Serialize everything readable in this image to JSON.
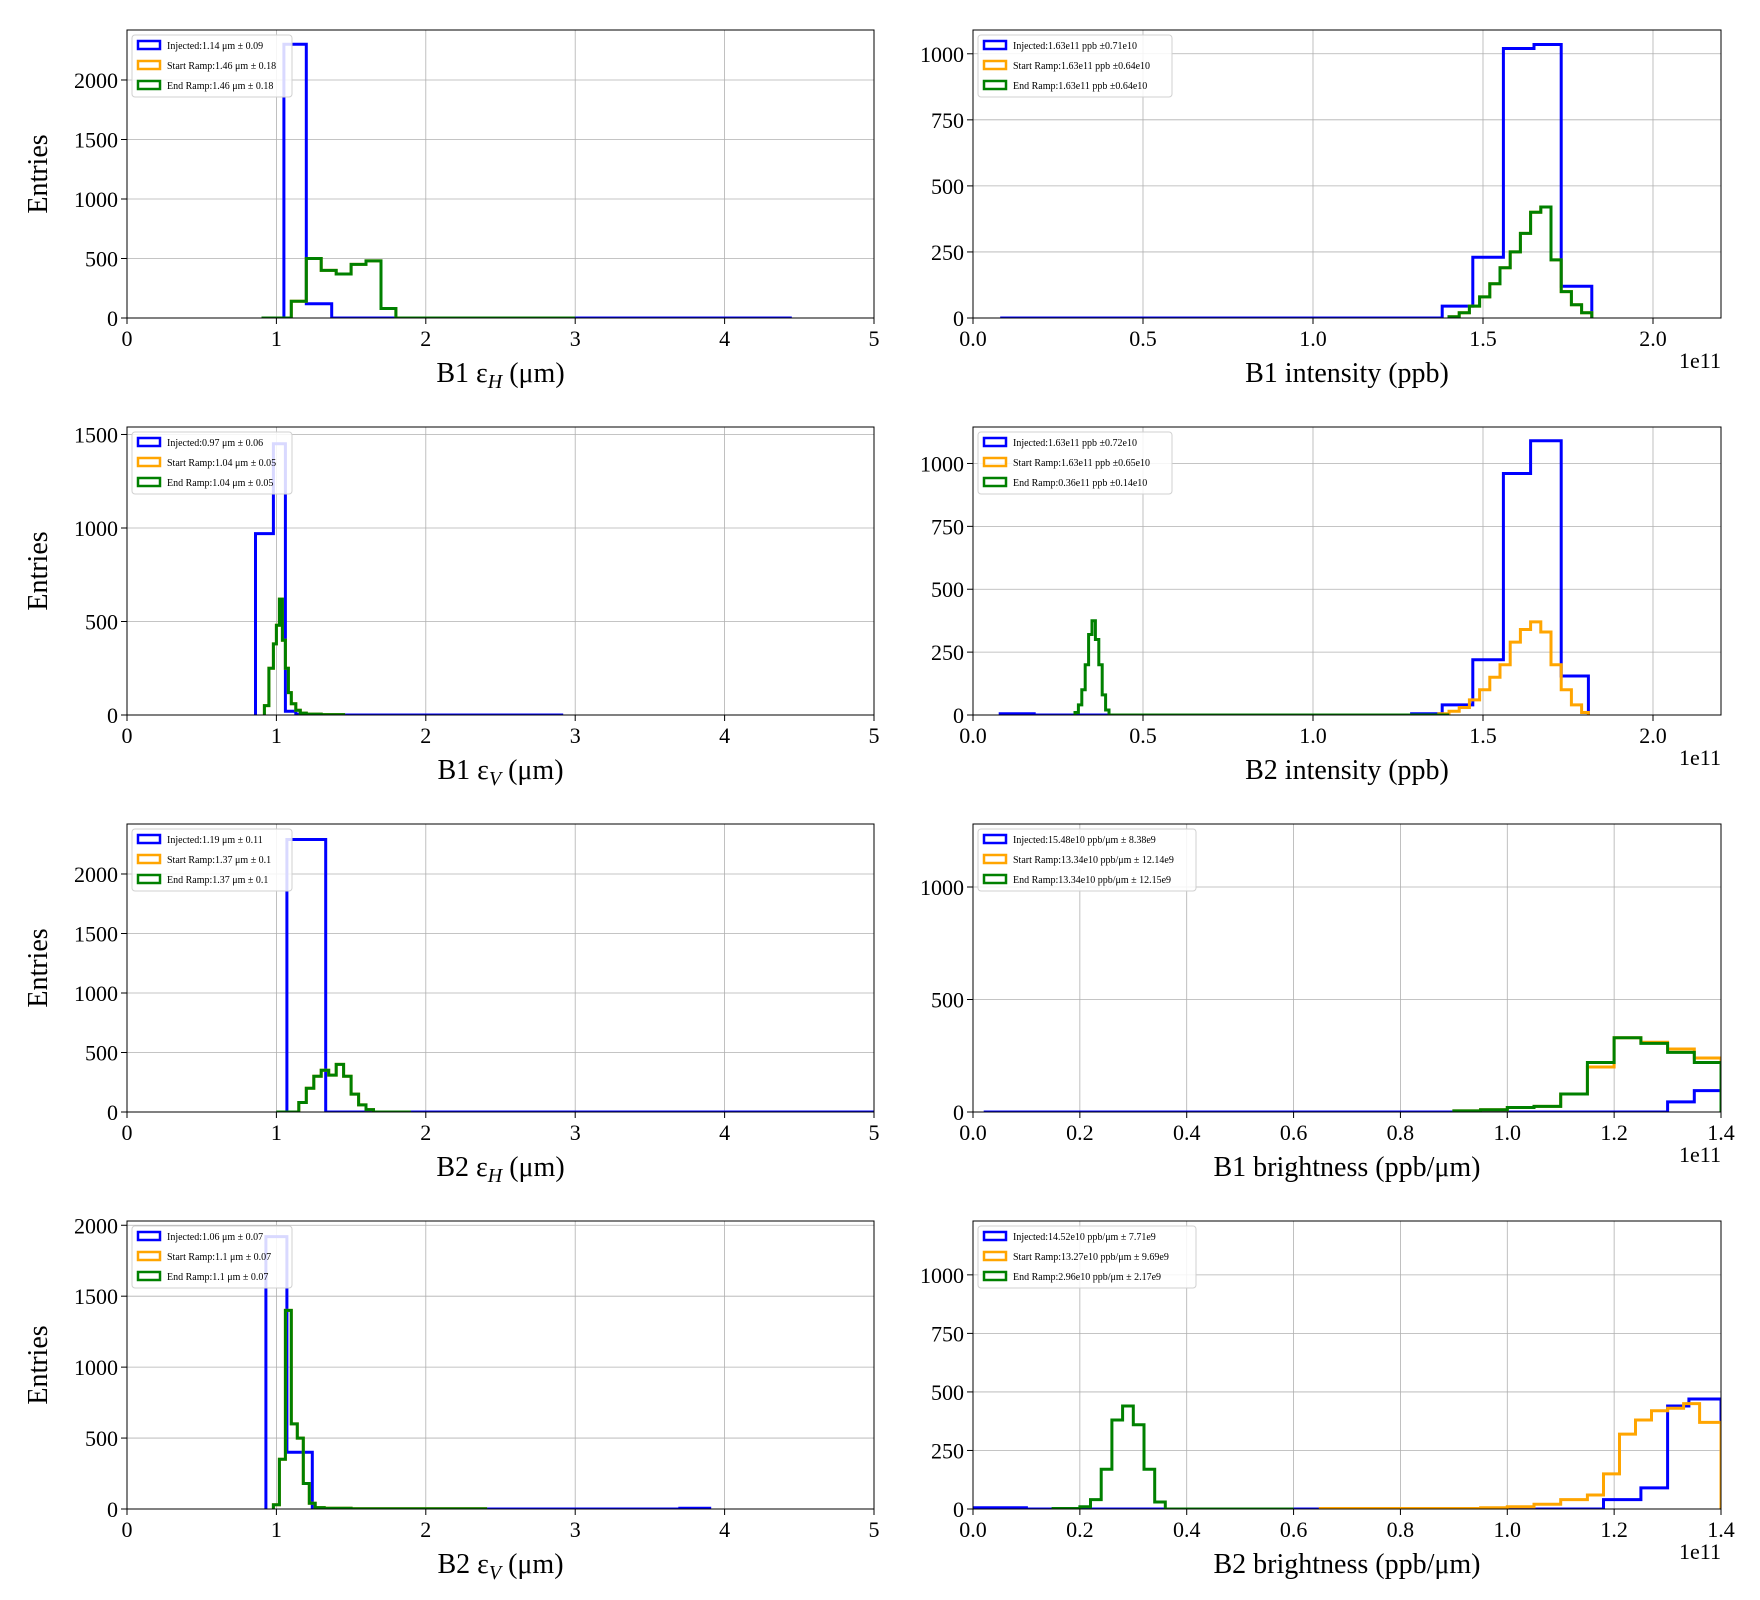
{
  "chart_data": [
    {
      "id": "b1-eh",
      "type": "histogram",
      "xlabel_main": "B1 ε",
      "xlabel_sub": "H",
      "xlabel_unit": " (μm)",
      "ylabel": "Entries",
      "xlim": [
        0,
        5
      ],
      "ylim": [
        0,
        2420
      ],
      "xticks": [
        0,
        1,
        2,
        3,
        4,
        5
      ],
      "xtick_labels": [
        "0",
        "1",
        "2",
        "3",
        "4",
        "5"
      ],
      "yticks": [
        0,
        500,
        1000,
        1500,
        2000
      ],
      "ytick_labels": [
        "0",
        "500",
        "1000",
        "1500",
        "2000"
      ],
      "offset_text": "",
      "legend": [
        "Injected:1.14 μm ± 0.09",
        "Start Ramp:1.46 μm ± 0.18",
        "End Ramp:1.46 μm ± 0.18"
      ],
      "series": [
        {
          "color": "#0000ff",
          "edges": [
            0.9,
            1.05,
            1.2,
            1.37,
            4.45
          ],
          "values": [
            0,
            2300,
            120,
            0
          ]
        },
        {
          "color": "#ffa500",
          "edges": [
            1.1,
            1.2,
            1.3,
            1.4,
            1.5,
            1.6,
            1.7,
            1.8
          ],
          "values": [
            140,
            500,
            400,
            370,
            450,
            480,
            80
          ]
        },
        {
          "color": "#008000",
          "edges": [
            0.9,
            1.1,
            1.2,
            1.3,
            1.4,
            1.5,
            1.6,
            1.7,
            1.8,
            3.0
          ],
          "values": [
            0,
            140,
            500,
            400,
            370,
            450,
            480,
            80,
            0
          ]
        }
      ]
    },
    {
      "id": "b1-intensity",
      "type": "histogram",
      "xlabel_main": "B1 intensity (ppb)",
      "xlabel_sub": "",
      "xlabel_unit": "",
      "ylabel": "",
      "xlim": [
        0,
        2.2
      ],
      "ylim": [
        0,
        1090
      ],
      "xticks": [
        0,
        0.5,
        1.0,
        1.5,
        2.0
      ],
      "xtick_labels": [
        "0.0",
        "0.5",
        "1.0",
        "1.5",
        "2.0"
      ],
      "yticks": [
        0,
        250,
        500,
        750,
        1000
      ],
      "ytick_labels": [
        "0",
        "250",
        "500",
        "750",
        "1000"
      ],
      "offset_text": "1e11",
      "legend": [
        "Injected:1.63e11 ppb ±0.71e10",
        "Start Ramp:1.63e11 ppb ±0.64e10",
        "End Ramp:1.63e11 ppb ±0.64e10"
      ],
      "series": [
        {
          "color": "#0000ff",
          "edges": [
            0.08,
            1.38,
            1.47,
            1.56,
            1.65,
            1.73,
            1.82
          ],
          "values": [
            0,
            45,
            230,
            1020,
            1035,
            120
          ]
        },
        {
          "color": "#ffa500",
          "edges": [
            1.4,
            1.43,
            1.46,
            1.49,
            1.52,
            1.55,
            1.58,
            1.61,
            1.64,
            1.67,
            1.7,
            1.73,
            1.76,
            1.79,
            1.82
          ],
          "values": [
            5,
            20,
            45,
            80,
            130,
            190,
            250,
            320,
            400,
            420,
            220,
            100,
            50,
            20
          ]
        },
        {
          "color": "#008000",
          "edges": [
            1.4,
            1.43,
            1.46,
            1.49,
            1.52,
            1.55,
            1.58,
            1.61,
            1.64,
            1.67,
            1.7,
            1.73,
            1.76,
            1.79,
            1.82
          ],
          "values": [
            5,
            20,
            45,
            80,
            130,
            190,
            250,
            320,
            400,
            420,
            220,
            100,
            50,
            20
          ]
        }
      ]
    },
    {
      "id": "b1-ev",
      "type": "histogram",
      "xlabel_main": "B1 ε",
      "xlabel_sub": "V",
      "xlabel_unit": " (μm)",
      "ylabel": "Entries",
      "xlim": [
        0,
        5
      ],
      "ylim": [
        0,
        1540
      ],
      "xticks": [
        0,
        1,
        2,
        3,
        4,
        5
      ],
      "xtick_labels": [
        "0",
        "1",
        "2",
        "3",
        "4",
        "5"
      ],
      "yticks": [
        0,
        500,
        1000,
        1500
      ],
      "ytick_labels": [
        "0",
        "500",
        "1000",
        "1500"
      ],
      "offset_text": "",
      "legend": [
        "Injected:0.97 μm ± 0.06",
        "Start Ramp:1.04 μm ± 0.05",
        "End Ramp:1.04 μm ± 0.05"
      ],
      "series": [
        {
          "color": "#0000ff",
          "edges": [
            0.86,
            0.98,
            1.06,
            1.13,
            1.2,
            2.92
          ],
          "values": [
            970,
            1450,
            20,
            5,
            0
          ]
        },
        {
          "color": "#ffa500",
          "edges": [
            0.92,
            0.95,
            0.98,
            1.0,
            1.02,
            1.04,
            1.06,
            1.08,
            1.1,
            1.13,
            1.16,
            1.2,
            1.3,
            1.45
          ],
          "values": [
            50,
            250,
            380,
            480,
            620,
            400,
            250,
            120,
            60,
            25,
            10,
            5,
            2
          ]
        },
        {
          "color": "#008000",
          "edges": [
            0.92,
            0.95,
            0.98,
            1.0,
            1.02,
            1.04,
            1.06,
            1.08,
            1.1,
            1.13,
            1.16,
            1.2,
            1.3,
            1.45
          ],
          "values": [
            50,
            250,
            380,
            480,
            620,
            400,
            250,
            120,
            60,
            25,
            10,
            5,
            2
          ]
        }
      ]
    },
    {
      "id": "b2-intensity",
      "type": "histogram",
      "xlabel_main": "B2 intensity (ppb)",
      "xlabel_sub": "",
      "xlabel_unit": "",
      "ylabel": "",
      "xlim": [
        0,
        2.2
      ],
      "ylim": [
        0,
        1145
      ],
      "xticks": [
        0,
        0.5,
        1.0,
        1.5,
        2.0
      ],
      "xtick_labels": [
        "0.0",
        "0.5",
        "1.0",
        "1.5",
        "2.0"
      ],
      "yticks": [
        0,
        250,
        500,
        750,
        1000
      ],
      "ytick_labels": [
        "0",
        "250",
        "500",
        "750",
        "1000"
      ],
      "offset_text": "1e11",
      "legend": [
        "Injected:1.63e11 ppb ±0.72e10",
        "Start Ramp:1.63e11 ppb ±0.65e10",
        "End Ramp:0.36e11 ppb ±0.14e10"
      ],
      "series": [
        {
          "color": "#0000ff",
          "edges": [
            0.08,
            0.18,
            1.29,
            1.38,
            1.47,
            1.56,
            1.64,
            1.73,
            1.81
          ],
          "values": [
            5,
            0,
            5,
            40,
            220,
            960,
            1090,
            155
          ]
        },
        {
          "color": "#ffa500",
          "edges": [
            1.37,
            1.4,
            1.43,
            1.46,
            1.49,
            1.52,
            1.55,
            1.58,
            1.61,
            1.64,
            1.67,
            1.7,
            1.73,
            1.76,
            1.79,
            1.81
          ],
          "values": [
            5,
            15,
            30,
            60,
            100,
            150,
            200,
            290,
            340,
            370,
            330,
            200,
            100,
            40,
            10
          ]
        },
        {
          "color": "#008000",
          "edges": [
            0.3,
            0.31,
            0.32,
            0.33,
            0.34,
            0.35,
            0.36,
            0.37,
            0.38,
            0.39,
            0.4,
            1.4
          ],
          "values": [
            10,
            40,
            100,
            200,
            320,
            375,
            300,
            200,
            80,
            20,
            0
          ]
        }
      ]
    },
    {
      "id": "b2-eh",
      "type": "histogram",
      "xlabel_main": "B2 ε",
      "xlabel_sub": "H",
      "xlabel_unit": " (μm)",
      "ylabel": "Entries",
      "xlim": [
        0,
        5
      ],
      "ylim": [
        0,
        2420
      ],
      "xticks": [
        0,
        1,
        2,
        3,
        4,
        5
      ],
      "xtick_labels": [
        "0",
        "1",
        "2",
        "3",
        "4",
        "5"
      ],
      "yticks": [
        0,
        500,
        1000,
        1500,
        2000
      ],
      "ytick_labels": [
        "0",
        "500",
        "1000",
        "1500",
        "2000"
      ],
      "offset_text": "",
      "legend": [
        "Injected:1.19 μm ± 0.11",
        "Start Ramp:1.37 μm ± 0.1",
        "End Ramp:1.37 μm ± 0.1"
      ],
      "series": [
        {
          "color": "#0000ff",
          "edges": [
            1.0,
            1.07,
            1.33,
            5.0
          ],
          "values": [
            0,
            2290,
            0
          ]
        },
        {
          "color": "#ffa500",
          "edges": [
            1.15,
            1.2,
            1.25,
            1.3,
            1.35,
            1.4,
            1.45,
            1.5,
            1.55,
            1.6,
            1.65
          ],
          "values": [
            80,
            200,
            300,
            350,
            310,
            400,
            300,
            150,
            60,
            20
          ]
        },
        {
          "color": "#008000",
          "edges": [
            1.0,
            1.15,
            1.2,
            1.25,
            1.3,
            1.35,
            1.4,
            1.45,
            1.5,
            1.55,
            1.6,
            1.65,
            1.9
          ],
          "values": [
            0,
            80,
            200,
            300,
            350,
            310,
            400,
            300,
            150,
            60,
            20,
            0
          ]
        }
      ]
    },
    {
      "id": "b1-brightness",
      "type": "histogram",
      "xlabel_main": "B1 brightness (ppb/μm)",
      "xlabel_sub": "",
      "xlabel_unit": "",
      "ylabel": "",
      "xlim": [
        0,
        1.4
      ],
      "ylim": [
        0,
        1280
      ],
      "xticks": [
        0,
        0.2,
        0.4,
        0.6,
        0.8,
        1.0,
        1.2,
        1.4
      ],
      "xtick_labels": [
        "0.0",
        "0.2",
        "0.4",
        "0.6",
        "0.8",
        "1.0",
        "1.2",
        "1.4"
      ],
      "yticks": [
        0,
        500,
        1000
      ],
      "ytick_labels": [
        "0",
        "500",
        "1000"
      ],
      "offset_text": "1e11",
      "legend": [
        "Injected:15.48e10 ppb/μm ± 8.38e9",
        "Start Ramp:13.34e10 ppb/μm ± 12.14e9",
        "End Ramp:13.34e10 ppb/μm ± 12.15e9"
      ],
      "series": [
        {
          "color": "#0000ff",
          "edges": [
            0.02,
            1.25,
            1.3,
            1.35,
            1.4
          ],
          "values": [
            0,
            0,
            45,
            95
          ]
        },
        {
          "color": "#ffa500",
          "edges": [
            0.9,
            0.95,
            1.0,
            1.05,
            1.1,
            1.15,
            1.2,
            1.25,
            1.3,
            1.35,
            1.4
          ],
          "values": [
            5,
            10,
            20,
            25,
            80,
            200,
            330,
            310,
            280,
            240
          ]
        },
        {
          "color": "#008000",
          "edges": [
            0.9,
            0.95,
            1.0,
            1.05,
            1.1,
            1.15,
            1.2,
            1.25,
            1.3,
            1.35,
            1.4
          ],
          "values": [
            5,
            10,
            20,
            25,
            80,
            220,
            330,
            305,
            265,
            220
          ]
        }
      ]
    },
    {
      "id": "b2-ev",
      "type": "histogram",
      "xlabel_main": "B2 ε",
      "xlabel_sub": "V",
      "xlabel_unit": " (μm)",
      "ylabel": "Entries",
      "xlim": [
        0,
        5
      ],
      "ylim": [
        0,
        2030
      ],
      "xticks": [
        0,
        1,
        2,
        3,
        4,
        5
      ],
      "xtick_labels": [
        "0",
        "1",
        "2",
        "3",
        "4",
        "5"
      ],
      "yticks": [
        0,
        500,
        1000,
        1500,
        2000
      ],
      "ytick_labels": [
        "0",
        "500",
        "1000",
        "1500",
        "2000"
      ],
      "offset_text": "",
      "legend": [
        "Injected:1.06 μm ± 0.07",
        "Start Ramp:1.1 μm ± 0.07",
        "End Ramp:1.1 μm ± 0.07"
      ],
      "series": [
        {
          "color": "#0000ff",
          "edges": [
            0.93,
            1.07,
            1.1,
            1.24,
            1.3,
            3.7,
            3.9
          ],
          "values": [
            1920,
            400,
            400,
            5,
            0,
            5
          ]
        },
        {
          "color": "#ffa500",
          "edges": [
            0.98,
            1.02,
            1.06,
            1.1,
            1.14,
            1.18,
            1.22,
            1.26,
            1.32,
            1.5,
            2.4
          ],
          "values": [
            30,
            350,
            1400,
            600,
            500,
            180,
            40,
            10,
            5,
            2
          ]
        },
        {
          "color": "#008000",
          "edges": [
            0.98,
            1.02,
            1.06,
            1.1,
            1.14,
            1.18,
            1.22,
            1.26,
            1.32,
            1.5,
            2.4
          ],
          "values": [
            30,
            350,
            1400,
            600,
            500,
            180,
            40,
            10,
            5,
            2
          ]
        }
      ]
    },
    {
      "id": "b2-brightness",
      "type": "histogram",
      "xlabel_main": "B2 brightness (ppb/μm)",
      "xlabel_sub": "",
      "xlabel_unit": "",
      "ylabel": "",
      "xlim": [
        0,
        1.4
      ],
      "ylim": [
        0,
        1230
      ],
      "xticks": [
        0,
        0.2,
        0.4,
        0.6,
        0.8,
        1.0,
        1.2,
        1.4
      ],
      "xtick_labels": [
        "0.0",
        "0.2",
        "0.4",
        "0.6",
        "0.8",
        "1.0",
        "1.2",
        "1.4"
      ],
      "yticks": [
        0,
        250,
        500,
        750,
        1000
      ],
      "ytick_labels": [
        "0",
        "250",
        "500",
        "750",
        "1000"
      ],
      "offset_text": "1e11",
      "legend": [
        "Injected:14.52e10 ppb/μm ± 7.71e9",
        "Start Ramp:13.27e10 ppb/μm ± 9.69e9",
        "End Ramp:2.96e10 ppb/μm ± 2.17e9"
      ],
      "series": [
        {
          "color": "#0000ff",
          "edges": [
            0.0,
            0.1,
            1.18,
            1.25,
            1.3,
            1.34,
            1.4
          ],
          "values": [
            5,
            0,
            40,
            90,
            440,
            470
          ]
        },
        {
          "color": "#ffa500",
          "edges": [
            0.65,
            0.95,
            1.0,
            1.05,
            1.1,
            1.15,
            1.18,
            1.21,
            1.24,
            1.27,
            1.3,
            1.33,
            1.36,
            1.4
          ],
          "values": [
            2,
            5,
            10,
            20,
            40,
            60,
            150,
            320,
            380,
            420,
            430,
            450,
            370
          ]
        },
        {
          "color": "#008000",
          "edges": [
            0.15,
            0.2,
            0.22,
            0.24,
            0.26,
            0.28,
            0.3,
            0.32,
            0.34,
            0.36,
            0.4,
            0.6
          ],
          "values": [
            2,
            10,
            40,
            170,
            380,
            440,
            360,
            170,
            30,
            0,
            0
          ]
        }
      ]
    }
  ]
}
